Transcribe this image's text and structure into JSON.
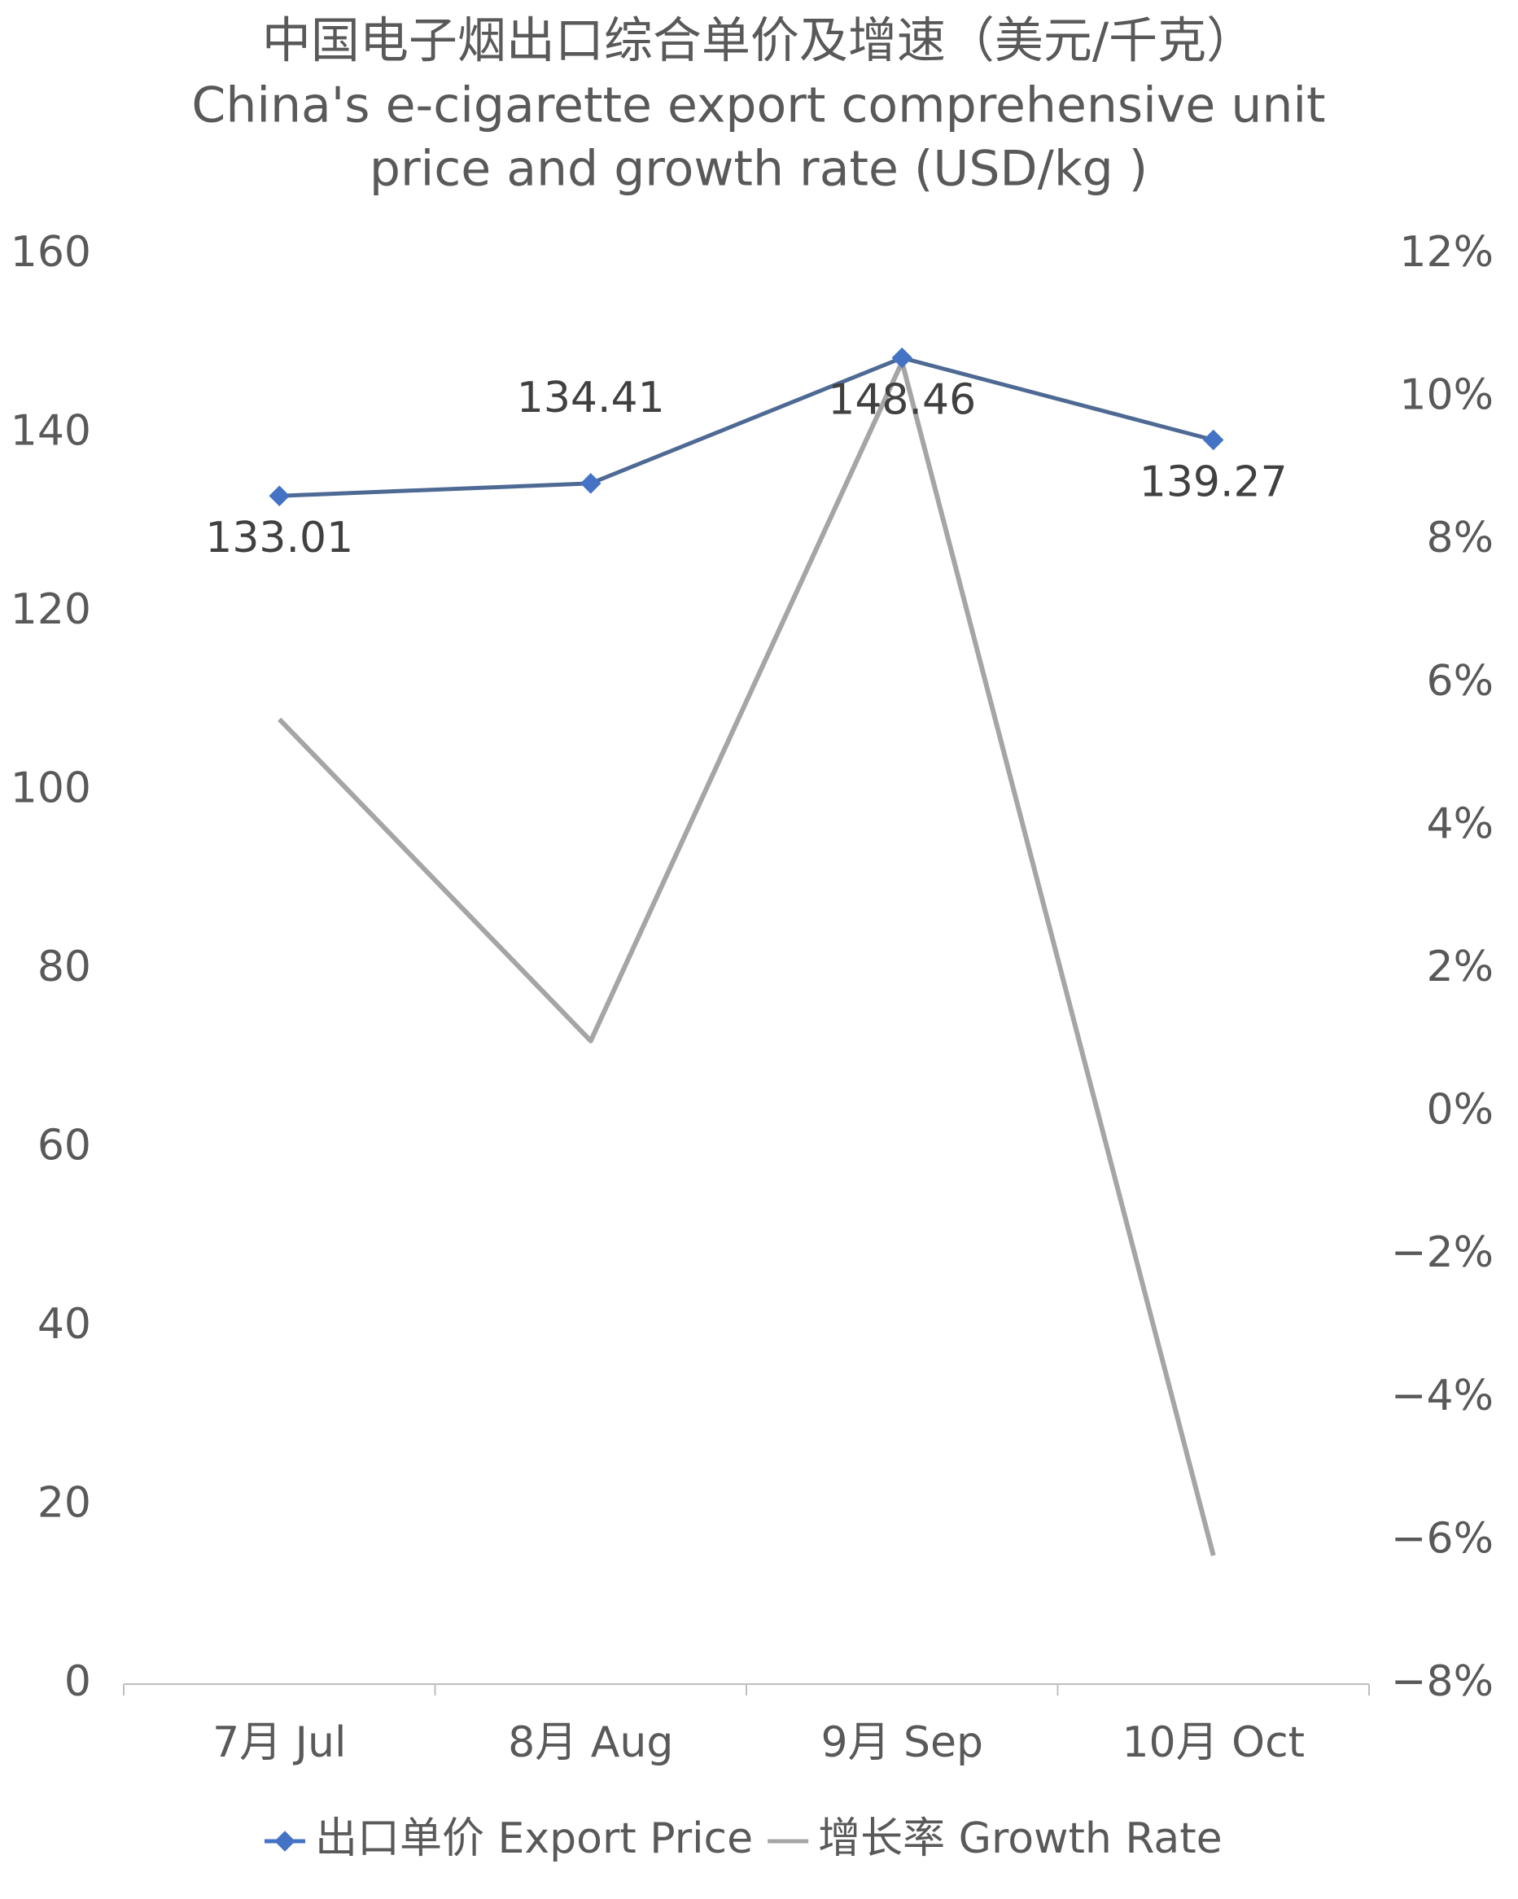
{
  "chart_data": {
    "type": "line",
    "title": [
      "中国电子烟出口综合单价及增速（美元/千克）",
      "China's e-cigarette export comprehensive unit",
      "price and growth rate (USD/kg )"
    ],
    "categories": [
      "7月 Jul",
      "8月 Aug",
      "9月 Sep",
      "10月 Oct"
    ],
    "series": [
      {
        "name": "出口单价 Export Price",
        "color": "#4e6a94",
        "marker_color": "#4472c4",
        "values": [
          133.01,
          134.41,
          148.46,
          139.27
        ]
      },
      {
        "name": "增长率 Growth Rate",
        "color": "#a5a5a5",
        "axis": "y2",
        "values": [
          5.5,
          1.0,
          10.5,
          -6.2
        ]
      }
    ],
    "ylim": [
      0,
      160
    ],
    "yticks": [
      0,
      20,
      40,
      60,
      80,
      100,
      120,
      140,
      160
    ],
    "y2lim": [
      -8,
      12
    ],
    "y2ticks": [
      {
        "value": -8,
        "label": "−8%"
      },
      {
        "value": -6,
        "label": "−6%"
      },
      {
        "value": -4,
        "label": "−4%"
      },
      {
        "value": -2,
        "label": "−2%"
      },
      {
        "value": 0,
        "label": "0%"
      },
      {
        "value": 2,
        "label": "2%"
      },
      {
        "value": 4,
        "label": "4%"
      },
      {
        "value": 6,
        "label": "6%"
      },
      {
        "value": 8,
        "label": "8%"
      },
      {
        "value": 10,
        "label": "10%"
      },
      {
        "value": 12,
        "label": "12%"
      }
    ],
    "grid": false,
    "legend": "bottom"
  }
}
